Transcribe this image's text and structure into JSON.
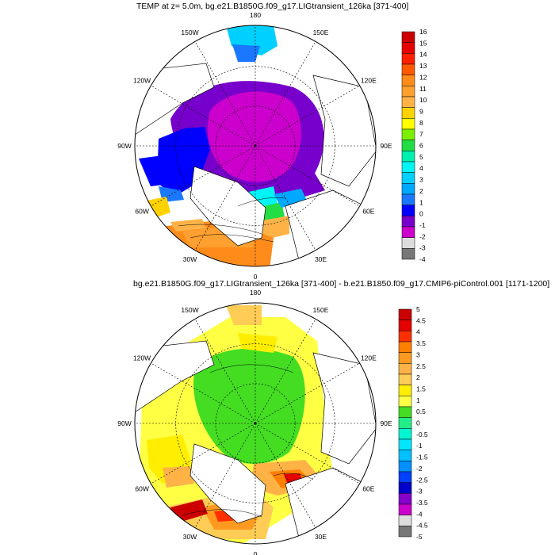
{
  "maps": [
    {
      "title": "TEMP at z=   5.0m, bg.e21.B1850G.f09_g17.LIGtransient_126ka [371-400]",
      "longitude_labels": [
        "180",
        "150E",
        "120E",
        "90E",
        "60E",
        "30E",
        "0",
        "30W",
        "60W",
        "90W",
        "120W",
        "150W"
      ],
      "colorbar": {
        "levels": [
          "16",
          "15",
          "14",
          "13",
          "12",
          "11",
          "10",
          "9",
          "8",
          "7",
          "6",
          "5",
          "4",
          "3",
          "2",
          "1",
          "0",
          "-1",
          "-2",
          "-3",
          "-4"
        ],
        "colors": [
          "#cc0000",
          "#e60000",
          "#ff2000",
          "#ff5a00",
          "#ff8c1a",
          "#ffa030",
          "#ffb347",
          "#ffd200",
          "#ffff00",
          "#7cf000",
          "#22dd44",
          "#00f0b0",
          "#00f5f5",
          "#00d0ff",
          "#00a8ff",
          "#1a78ff",
          "#0000ff",
          "#7700cc",
          "#cc00cc",
          "#dddddd",
          "#777777"
        ]
      }
    },
    {
      "title": "bg.e21.B1850G.f09_g17.LIGtransient_126ka [371-400] - b.e21.B1850.f09_g17.CMIP6-piControl.001 [1171-1200]",
      "longitude_labels": [
        "180",
        "150E",
        "120E",
        "90E",
        "60E",
        "30E",
        "0",
        "30W",
        "60W",
        "90W",
        "120W",
        "150W"
      ],
      "colorbar": {
        "levels": [
          "5",
          "4.5",
          "4",
          "3.5",
          "3",
          "2.5",
          "2",
          "1.5",
          "1",
          "0.5",
          "0",
          "-0.5",
          "-1",
          "-1.5",
          "-2",
          "-2.5",
          "-3",
          "-3.5",
          "-4",
          "-4.5",
          "-5"
        ],
        "colors": [
          "#cc0000",
          "#e60000",
          "#ff3000",
          "#ff7f00",
          "#ff9a20",
          "#ffb347",
          "#ffcc55",
          "#ffee00",
          "#ffff44",
          "#44dd22",
          "#22ee88",
          "#00f5d0",
          "#00e6ff",
          "#00c0ff",
          "#0090ff",
          "#0040ff",
          "#0000cc",
          "#8800cc",
          "#cc00cc",
          "#dddddd",
          "#777777"
        ]
      }
    }
  ]
}
